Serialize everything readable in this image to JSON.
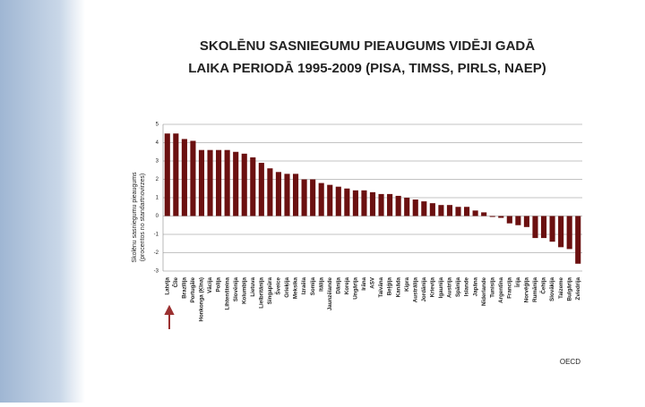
{
  "chart_data": {
    "type": "bar",
    "title": [
      "SKOLĒNU SASNIEGUMU PIEAUGUMS VIDĒJI GADĀ",
      "LAIKA PERIODĀ 1995-2009 (PISA, TIMSS, PIRLS, NAEP)"
    ],
    "y_label": [
      "Skolēnu sasniegumu pieaugums",
      "(procentos no standartnovirzes)"
    ],
    "source": "OECD",
    "categories": [
      "Latvija",
      "Čīle",
      "Brazīlija",
      "Portugāle",
      "Honkonga (Ķīna)",
      "Vācija",
      "Polija",
      "Lihtenšteina",
      "Slovēnija",
      "Kolumbija",
      "Lietuva",
      "Lielbritānija",
      "Singapūra",
      "Šveice",
      "Grieķija",
      "Meksika",
      "Izraēla",
      "Somija",
      "Itālija",
      "Jaunzēlande",
      "Dānija",
      "Koreja",
      "Ungārija",
      "Irāna",
      "ASV",
      "Taivāna",
      "Beļģija",
      "Kanāda",
      "Kipra",
      "Austrālija",
      "Jordānija",
      "Krievija",
      "Igaunija",
      "Austrija",
      "Spānija",
      "Islande",
      "Japāna",
      "Nīderlande",
      "Tunisija",
      "Argentīna",
      "Francija",
      "Īrija",
      "Norvēģija",
      "Rumānija",
      "Čehija",
      "Slovākija",
      "Taizeme",
      "Bulgārija",
      "Zviedrija"
    ],
    "values": [
      4.5,
      4.5,
      4.2,
      4.1,
      3.6,
      3.6,
      3.6,
      3.6,
      3.5,
      3.4,
      3.2,
      2.9,
      2.6,
      2.4,
      2.3,
      2.3,
      2.0,
      2.0,
      1.8,
      1.7,
      1.6,
      1.5,
      1.4,
      1.4,
      1.3,
      1.2,
      1.2,
      1.1,
      1.0,
      0.9,
      0.8,
      0.7,
      0.6,
      0.6,
      0.5,
      0.5,
      0.3,
      0.2,
      -0.05,
      -0.1,
      -0.4,
      -0.5,
      -0.6,
      -1.2,
      -1.2,
      -1.4,
      -1.7,
      -1.8,
      -2.6
    ],
    "color": "#6b1010",
    "ylim": [
      -3,
      5
    ],
    "yticks": [
      -3,
      -2,
      -1,
      0,
      1,
      2,
      3,
      4,
      5
    ],
    "grid": true
  }
}
